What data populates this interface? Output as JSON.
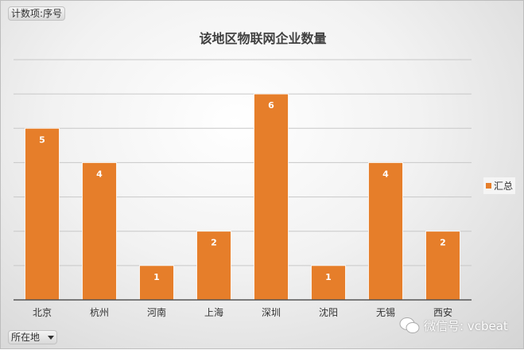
{
  "field_button": "计数项:序号",
  "axis_field_button": "所在地",
  "watermark": {
    "icon": "wechat-icon",
    "text": "微信号: vcbeat"
  },
  "colors": {
    "bar": "#e67e2a",
    "grid": "#c8c8c8",
    "axis": "#555555"
  },
  "chart_data": {
    "type": "bar",
    "title": "该地区物联网企业数量",
    "categories": [
      "北京",
      "杭州",
      "河南",
      "上海",
      "深圳",
      "沈阳",
      "无锡",
      "西安"
    ],
    "series": [
      {
        "name": "汇总",
        "values": [
          5,
          4,
          1,
          2,
          6,
          1,
          4,
          2
        ]
      }
    ],
    "ylim": [
      0,
      7
    ],
    "grid": true,
    "y_tick_labels_shown": false,
    "data_labels": true,
    "legend": "right"
  }
}
